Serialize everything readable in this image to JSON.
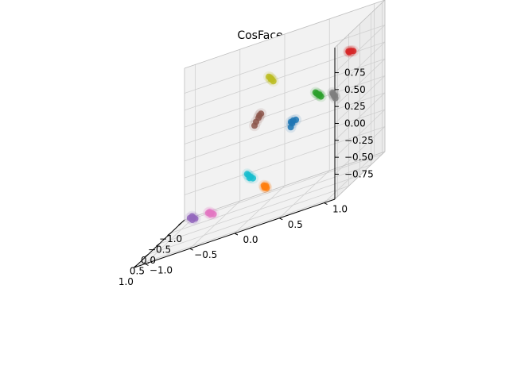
{
  "chart_data": {
    "type": "scatter",
    "projection": "3d",
    "title": "CosFace",
    "xlabel": "",
    "ylabel": "",
    "zlabel": "",
    "grid": true,
    "legend": "none",
    "xlim": [
      -1.0,
      1.0
    ],
    "ylim": [
      -1.0,
      1.0
    ],
    "zlim": [
      -1.0,
      1.0
    ],
    "xticks": [
      "−1.0",
      "−0.5",
      "0.0",
      "0.5",
      "1.0"
    ],
    "yticks": [
      "−1.0",
      "−0.5",
      "0.0",
      "0.5",
      "1.0"
    ],
    "zticks": [
      "−0.75",
      "−0.50",
      "−0.25",
      "0.00",
      "0.25",
      "0.50",
      "0.75"
    ],
    "series": [
      {
        "color": "#1f77b4",
        "x": [
          -0.05,
          0.02,
          -0.08,
          0.05,
          -0.02
        ],
        "y": [
          0.35,
          0.38,
          0.33,
          0.36,
          0.4
        ],
        "z": [
          -0.02,
          0.03,
          0.0,
          -0.05,
          0.02
        ]
      },
      {
        "color": "#ff7f0e",
        "x": [
          0.95,
          0.93,
          0.97,
          0.94,
          0.96
        ],
        "y": [
          0.3,
          0.28,
          0.32,
          0.29,
          0.31
        ],
        "z": [
          -0.62,
          -0.6,
          -0.64,
          -0.63,
          -0.61
        ]
      },
      {
        "color": "#2ca02c",
        "x": [
          0.75,
          0.72,
          0.78,
          0.7,
          0.76
        ],
        "y": [
          0.85,
          0.82,
          0.88,
          0.8,
          0.86
        ],
        "z": [
          0.42,
          0.45,
          0.4,
          0.47,
          0.43
        ]
      },
      {
        "color": "#d62728",
        "x": [
          -0.3,
          -0.25,
          -0.35,
          -0.28,
          -0.32
        ],
        "y": [
          0.95,
          0.93,
          0.96,
          0.94,
          0.92
        ],
        "z": [
          0.7,
          0.72,
          0.68,
          0.71,
          0.69
        ]
      },
      {
        "color": "#9467bd",
        "x": [
          -0.05,
          -0.1,
          0.0,
          -0.08,
          -0.03
        ],
        "y": [
          -0.75,
          -0.78,
          -0.72,
          -0.8,
          -0.76
        ],
        "z": [
          -0.92,
          -0.9,
          -0.93,
          -0.91,
          -0.94
        ]
      },
      {
        "color": "#8c564b",
        "x": [
          -0.95,
          -0.96,
          -0.94,
          -0.97,
          -0.95
        ],
        "y": [
          -0.25,
          -0.28,
          -0.22,
          -0.3,
          -0.24
        ],
        "z": [
          0.05,
          0.0,
          0.1,
          -0.05,
          0.08
        ]
      },
      {
        "color": "#e377c2",
        "x": [
          0.75,
          0.72,
          0.78,
          0.7,
          0.76
        ],
        "y": [
          -0.35,
          -0.38,
          -0.32,
          -0.4,
          -0.36
        ],
        "z": [
          -0.78,
          -0.76,
          -0.8,
          -0.77,
          -0.79
        ]
      },
      {
        "color": "#7f7f7f",
        "x": [
          0.35,
          0.32,
          0.38,
          0.3,
          0.36
        ],
        "y": [
          0.92,
          0.9,
          0.94,
          0.89,
          0.93
        ],
        "z": [
          0.25,
          0.28,
          0.22,
          0.3,
          0.26
        ]
      },
      {
        "color": "#bcbd22",
        "x": [
          -0.95,
          -0.96,
          -0.93,
          -0.97,
          -0.94
        ],
        "y": [
          -0.1,
          -0.12,
          -0.08,
          -0.14,
          -0.11
        ],
        "z": [
          0.55,
          0.58,
          0.52,
          0.6,
          0.56
        ]
      },
      {
        "color": "#17becf",
        "x": [
          0.2,
          0.18,
          0.22,
          0.16,
          0.21
        ],
        "y": [
          -0.05,
          -0.08,
          -0.02,
          -0.1,
          -0.06
        ],
        "z": [
          -0.55,
          -0.52,
          -0.58,
          -0.5,
          -0.56
        ]
      }
    ]
  }
}
